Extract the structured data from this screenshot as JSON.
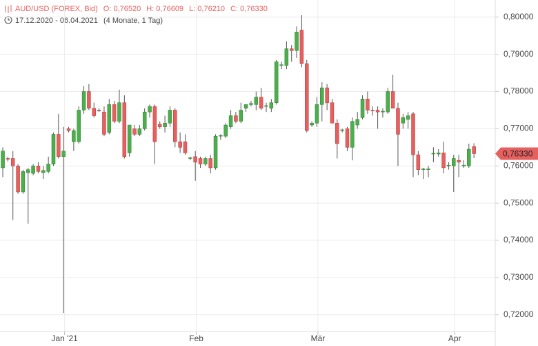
{
  "chart_data": {
    "type": "candlestick",
    "title": "AUD/USD (FOREX, Bid)",
    "ohlc_header": [
      "O: 0,76520",
      "H: 0,76609",
      "L: 0,76210",
      "C: 0,76330"
    ],
    "date_range": "17.12.2020 - 06.04.2021",
    "period": "(4 Monate, 1 Tag)",
    "up_color": "#4cae4c",
    "down_color": "#e5605f",
    "grid": true,
    "xlim": [
      -0.55,
      97.2
    ],
    "xticks": [
      {
        "value": 12.2,
        "label": "Jan '21"
      },
      {
        "value": 38.2,
        "label": "Feb"
      },
      {
        "value": 62.2,
        "label": "Mär"
      },
      {
        "value": 89.2,
        "label": "Apr"
      }
    ],
    "ylim": [
      0.7155,
      0.8046
    ],
    "yticks": [
      {
        "value": 0.72,
        "label": "0,72000"
      },
      {
        "value": 0.73,
        "label": "0,73000"
      },
      {
        "value": 0.74,
        "label": "0,74000"
      },
      {
        "value": 0.75,
        "label": "0,75000"
      },
      {
        "value": 0.76,
        "label": "0,76000"
      },
      {
        "value": 0.77,
        "label": "0,77000"
      },
      {
        "value": 0.78,
        "label": "0,78000"
      },
      {
        "value": 0.79,
        "label": "0,79000"
      },
      {
        "value": 0.8,
        "label": "0,80000"
      }
    ],
    "last_price": {
      "value": 0.7633,
      "label": "0,76330"
    },
    "candles": [
      [
        0.7595,
        0.765,
        0.757,
        0.764
      ],
      [
        0.762,
        0.7625,
        0.7612,
        0.7618
      ],
      [
        0.762,
        0.764,
        0.7455,
        0.76
      ],
      [
        0.76,
        0.7605,
        0.7525,
        0.753
      ],
      [
        0.753,
        0.759,
        0.7525,
        0.7585
      ],
      [
        0.7582,
        0.7595,
        0.7445,
        0.759
      ],
      [
        0.758,
        0.7605,
        0.7575,
        0.76
      ],
      [
        0.76,
        0.761,
        0.758,
        0.7585
      ],
      [
        0.7582,
        0.76,
        0.7565,
        0.7588
      ],
      [
        0.7585,
        0.7625,
        0.758,
        0.7605
      ],
      [
        0.7605,
        0.769,
        0.76,
        0.7685
      ],
      [
        0.7685,
        0.774,
        0.762,
        0.7625
      ],
      [
        0.7625,
        0.7705,
        0.7205,
        0.764
      ],
      [
        0.77,
        0.7705,
        0.769,
        0.7695
      ],
      [
        0.7665,
        0.77,
        0.764,
        0.7695
      ],
      [
        0.7665,
        0.776,
        0.766,
        0.775
      ],
      [
        0.775,
        0.7815,
        0.774,
        0.78
      ],
      [
        0.78,
        0.782,
        0.775,
        0.7755
      ],
      [
        0.7755,
        0.777,
        0.773,
        0.7735
      ],
      [
        0.775,
        0.7755,
        0.7745,
        0.7748
      ],
      [
        0.7745,
        0.776,
        0.768,
        0.7685
      ],
      [
        0.769,
        0.778,
        0.7685,
        0.7765
      ],
      [
        0.7765,
        0.7775,
        0.7715,
        0.772
      ],
      [
        0.772,
        0.7805,
        0.7715,
        0.777
      ],
      [
        0.777,
        0.779,
        0.762,
        0.7625
      ],
      [
        0.7635,
        0.771,
        0.7625,
        0.771
      ],
      [
        0.77,
        0.771,
        0.768,
        0.7685
      ],
      [
        0.7685,
        0.771,
        0.768,
        0.77
      ],
      [
        0.77,
        0.7755,
        0.7695,
        0.7745
      ],
      [
        0.7745,
        0.7765,
        0.773,
        0.776
      ],
      [
        0.776,
        0.7765,
        0.7605,
        0.7665
      ],
      [
        0.7712,
        0.772,
        0.77,
        0.7705
      ],
      [
        0.7705,
        0.7735,
        0.769,
        0.7715
      ],
      [
        0.7715,
        0.776,
        0.7705,
        0.775
      ],
      [
        0.775,
        0.7755,
        0.765,
        0.7665
      ],
      [
        0.7665,
        0.769,
        0.7635,
        0.765
      ],
      [
        0.7665,
        0.7685,
        0.763,
        0.7635
      ],
      [
        0.762,
        0.7625,
        0.7615,
        0.7622
      ],
      [
        0.7625,
        0.764,
        0.756,
        0.761
      ],
      [
        0.762,
        0.7625,
        0.7595,
        0.7605
      ],
      [
        0.7605,
        0.7625,
        0.76,
        0.762
      ],
      [
        0.762,
        0.763,
        0.758,
        0.7595
      ],
      [
        0.7595,
        0.7685,
        0.759,
        0.768
      ],
      [
        0.768,
        0.7685,
        0.767,
        0.7682
      ],
      [
        0.768,
        0.7715,
        0.7675,
        0.771
      ],
      [
        0.7705,
        0.775,
        0.77,
        0.7735
      ],
      [
        0.7735,
        0.7745,
        0.7715,
        0.772
      ],
      [
        0.772,
        0.777,
        0.7715,
        0.775
      ],
      [
        0.7755,
        0.7765,
        0.7745,
        0.7765
      ],
      [
        0.7765,
        0.7775,
        0.776,
        0.7768
      ],
      [
        0.7765,
        0.78,
        0.775,
        0.7785
      ],
      [
        0.7785,
        0.781,
        0.775,
        0.7755
      ],
      [
        0.776,
        0.777,
        0.7745,
        0.7762
      ],
      [
        0.7755,
        0.778,
        0.7745,
        0.777
      ],
      [
        0.777,
        0.7885,
        0.7765,
        0.788
      ],
      [
        0.787,
        0.788,
        0.786,
        0.7872
      ],
      [
        0.787,
        0.7935,
        0.786,
        0.7915
      ],
      [
        0.7915,
        0.7925,
        0.788,
        0.791
      ],
      [
        0.791,
        0.7975,
        0.789,
        0.796
      ],
      [
        0.7965,
        0.8005,
        0.7865,
        0.7875
      ],
      [
        0.7875,
        0.7885,
        0.769,
        0.7695
      ],
      [
        0.771,
        0.772,
        0.7705,
        0.7715
      ],
      [
        0.7715,
        0.7785,
        0.7705,
        0.7765
      ],
      [
        0.7765,
        0.7825,
        0.772,
        0.781
      ],
      [
        0.781,
        0.782,
        0.775,
        0.777
      ],
      [
        0.777,
        0.778,
        0.7715,
        0.7715
      ],
      [
        0.7715,
        0.7725,
        0.762,
        0.766
      ],
      [
        0.7695,
        0.77,
        0.769,
        0.7697
      ],
      [
        0.77,
        0.7705,
        0.764,
        0.765
      ],
      [
        0.765,
        0.773,
        0.7615,
        0.772
      ],
      [
        0.771,
        0.7745,
        0.77,
        0.7725
      ],
      [
        0.773,
        0.779,
        0.7725,
        0.778
      ],
      [
        0.778,
        0.78,
        0.774,
        0.775
      ],
      [
        0.775,
        0.776,
        0.7735,
        0.7748
      ],
      [
        0.775,
        0.776,
        0.77,
        0.7745
      ],
      [
        0.7745,
        0.7755,
        0.773,
        0.7747
      ],
      [
        0.7745,
        0.781,
        0.774,
        0.78
      ],
      [
        0.78,
        0.7845,
        0.7755,
        0.7755
      ],
      [
        0.7755,
        0.777,
        0.76,
        0.7685
      ],
      [
        0.7715,
        0.774,
        0.77,
        0.773
      ],
      [
        0.7725,
        0.7745,
        0.77,
        0.7735
      ],
      [
        0.774,
        0.7745,
        0.757,
        0.763
      ],
      [
        0.763,
        0.764,
        0.7575,
        0.759
      ],
      [
        0.759,
        0.7595,
        0.7565,
        0.7592
      ],
      [
        0.759,
        0.76,
        0.757,
        0.7592
      ],
      [
        0.7632,
        0.765,
        0.761,
        0.7634
      ],
      [
        0.7632,
        0.7645,
        0.7625,
        0.7635
      ],
      [
        0.7635,
        0.7665,
        0.758,
        0.7595
      ],
      [
        0.76,
        0.761,
        0.759,
        0.7602
      ],
      [
        0.76,
        0.763,
        0.753,
        0.762
      ],
      [
        0.7615,
        0.763,
        0.757,
        0.761
      ],
      [
        0.76,
        0.7615,
        0.7595,
        0.7602
      ],
      [
        0.76,
        0.766,
        0.7595,
        0.7645
      ],
      [
        0.7652,
        0.7661,
        0.7621,
        0.7633
      ]
    ]
  }
}
